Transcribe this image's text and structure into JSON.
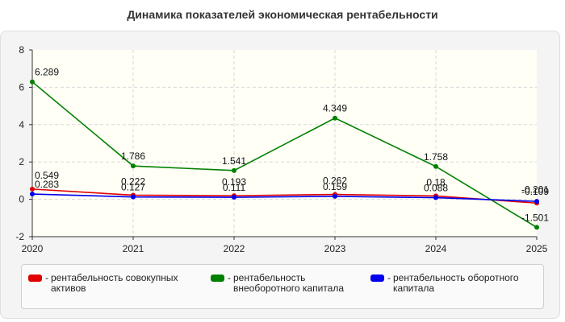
{
  "chart_data": {
    "type": "line",
    "title": "Динамика показателей экономическая рентабельности",
    "xlabel": "",
    "ylabel": "",
    "categories": [
      "2020",
      "2021",
      "2022",
      "2023",
      "2024",
      "2025"
    ],
    "ylim": [
      -2,
      8
    ],
    "yticks": [
      -2,
      0,
      2,
      4,
      6,
      8
    ],
    "grid": true,
    "legend_position": "bottom",
    "series": [
      {
        "name": "рентабельность совокупных активов",
        "color": "#e00000",
        "values": [
          0.549,
          0.222,
          0.193,
          0.262,
          0.18,
          -0.201
        ],
        "labels": [
          "0.549",
          "0.222",
          "0.193",
          "0.262",
          "0.18",
          "-0.201"
        ]
      },
      {
        "name": "рентабельность внеоборотного капитала",
        "color": "#008000",
        "values": [
          6.289,
          1.786,
          1.541,
          4.349,
          1.758,
          -1.501
        ],
        "labels": [
          "6.289",
          "1.786",
          "1.541",
          "4.349",
          "1.758",
          "-1.501"
        ]
      },
      {
        "name": "рентабельность оборотного капитала",
        "color": "#0000ee",
        "values": [
          0.283,
          0.127,
          0.111,
          0.159,
          0.088,
          -0.109
        ],
        "labels": [
          "0.283",
          "0.127",
          "0.111",
          "0.159",
          "0.088",
          "-0.109"
        ]
      }
    ]
  }
}
